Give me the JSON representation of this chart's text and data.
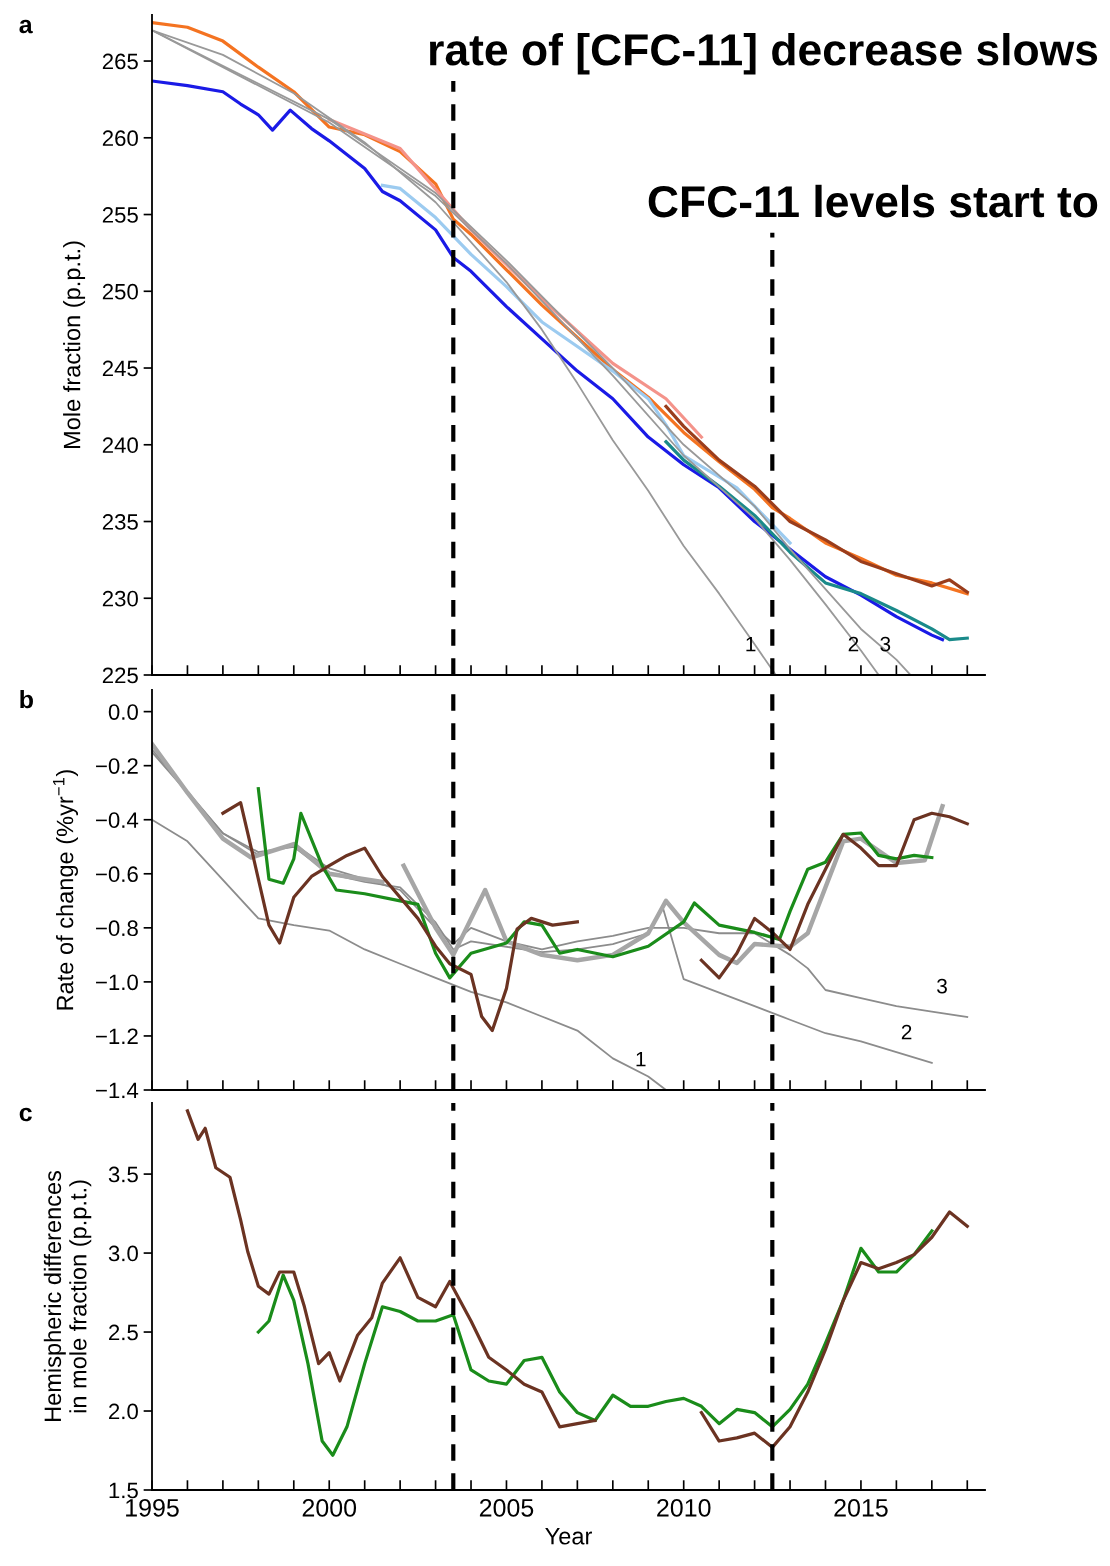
{
  "chart_data": [
    {
      "type": "line",
      "title": "a",
      "ylabel": "Mole fraction (p.p.t.)",
      "xlim": [
        1995,
        2018.5
      ],
      "ylim": [
        225,
        268
      ],
      "yticks": [
        225,
        230,
        235,
        240,
        245,
        250,
        255,
        260,
        265
      ],
      "xticks": [
        1995,
        {
          "value": 1996,
          "label": null
        },
        {
          "value": 1997,
          "label": null
        },
        {
          "value": 1998,
          "label": null
        },
        {
          "value": 1999,
          "label": null
        },
        2000,
        {
          "value": 2001,
          "label": null
        },
        {
          "value": 2002,
          "label": null
        },
        {
          "value": 2003,
          "label": null
        },
        {
          "value": 2004,
          "label": null
        },
        2005,
        {
          "value": 2006,
          "label": null
        },
        {
          "value": 2007,
          "label": null
        },
        {
          "value": 2008,
          "label": null
        },
        {
          "value": 2009,
          "label": null
        },
        2010,
        {
          "value": 2011,
          "label": null
        },
        {
          "value": 2012,
          "label": null
        },
        {
          "value": 2013,
          "label": null
        },
        {
          "value": 2014,
          "label": null
        },
        2015,
        {
          "value": 2016,
          "label": null
        },
        {
          "value": 2017,
          "label": null
        },
        {
          "value": 2018,
          "label": null
        }
      ],
      "tick_labels": "y",
      "series": [
        {
          "color": "#f47321",
          "x": [
            1995,
            1996,
            1997,
            1998,
            1999,
            2000,
            2001,
            2002,
            2003,
            2003.5,
            2004,
            2005,
            2006,
            2007,
            2008,
            2009,
            2010,
            2011,
            2012,
            2012.5,
            2013,
            2014,
            2015,
            2016,
            2017,
            2018
          ],
          "values": [
            267.5,
            267.2,
            266.3,
            264.6,
            263.0,
            260.7,
            260.2,
            259.1,
            257.0,
            254.7,
            253.7,
            251.4,
            249.1,
            247.0,
            244.9,
            243.1,
            240.8,
            238.9,
            237.1,
            235.9,
            235.2,
            233.6,
            232.6,
            231.5,
            231.0,
            230.3
          ]
        },
        {
          "color": "#f4938a",
          "x": [
            2000,
            2002,
            2004,
            2006,
            2008,
            2009.5,
            2010.5
          ],
          "values": [
            261.2,
            259.3,
            254.0,
            249.5,
            245.3,
            243.0,
            240.5
          ]
        },
        {
          "color": "#9a3d1c",
          "x": [
            2009.5,
            2010,
            2011,
            2012,
            2013,
            2014,
            2015,
            2016,
            2017,
            2017.5,
            2018
          ],
          "values": [
            242.5,
            241.2,
            239.0,
            237.3,
            235.0,
            233.8,
            232.4,
            231.6,
            230.8,
            231.2,
            230.4
          ]
        },
        {
          "color": "#9ccbf0",
          "x": [
            2001.5,
            2002,
            2003,
            2004,
            2005,
            2006,
            2007,
            2008,
            2009,
            2009.5,
            2010,
            2011.5,
            2013
          ],
          "values": [
            256.9,
            256.7,
            254.8,
            252.4,
            250.3,
            248.0,
            246.4,
            244.8,
            243.0,
            241.3,
            239.3,
            237.2,
            233.6
          ]
        },
        {
          "color": "#1a1ae6",
          "x": [
            1995,
            1996,
            1997,
            1997.5,
            1998,
            1998.4,
            1998.9,
            1999.5,
            2000,
            2001,
            2001.5,
            2002,
            2003,
            2003.5,
            2004,
            2005,
            2006,
            2007,
            2008,
            2009,
            2010,
            2011,
            2012,
            2013,
            2014,
            2015,
            2016,
            2017,
            2017.3
          ],
          "values": [
            263.7,
            263.4,
            263.0,
            262.2,
            261.5,
            260.5,
            261.8,
            260.6,
            259.8,
            258.0,
            256.5,
            255.9,
            254.0,
            252.2,
            251.3,
            249.0,
            246.9,
            244.8,
            243.0,
            240.5,
            238.7,
            237.2,
            235.0,
            233.2,
            231.4,
            230.2,
            228.8,
            227.6,
            227.3
          ]
        },
        {
          "color": "#1a8a8a",
          "x": [
            2009.5,
            2010,
            2011,
            2012,
            2013,
            2014,
            2015,
            2016,
            2017,
            2017.5,
            2018
          ],
          "values": [
            240.2,
            239.0,
            237.3,
            235.4,
            233.0,
            231.0,
            230.3,
            229.2,
            228.0,
            227.3,
            227.4
          ]
        },
        {
          "name": "1",
          "color": "#999999",
          "x": [
            1995,
            1997,
            1999,
            2001,
            2003,
            2005,
            2006,
            2007,
            2008,
            2009,
            2010,
            2011,
            2012,
            2012.6
          ],
          "values": [
            267.0,
            265.4,
            262.9,
            259.7,
            255.8,
            250.6,
            247.5,
            244.0,
            240.3,
            237.0,
            233.4,
            230.3,
            227.0,
            225.0
          ]
        },
        {
          "name": "2",
          "color": "#999999",
          "x": [
            1995,
            2000,
            2003,
            2005,
            2008,
            2010,
            2012,
            2013,
            2014,
            2015,
            2015.5
          ],
          "values": [
            267.0,
            261.0,
            256.2,
            251.8,
            244.5,
            239.3,
            235.2,
            232.5,
            229.6,
            226.6,
            225.0
          ]
        },
        {
          "name": "3",
          "color": "#999999",
          "x": [
            1995,
            2000,
            2003,
            2005,
            2008,
            2010,
            2012,
            2013,
            2014,
            2015,
            2016,
            2016.4
          ],
          "values": [
            267.0,
            261.2,
            256.4,
            252.0,
            245.0,
            240.0,
            236.0,
            233.2,
            230.6,
            228.0,
            226.0,
            225.0
          ]
        }
      ],
      "ref_lines": [
        {
          "axis": "x",
          "value": 2003.5,
          "label": "rate of [CFC-11] decrease slows",
          "color": "#000000",
          "line_style": "dashed"
        },
        {
          "axis": "x",
          "value": 2012.5,
          "label": "CFC-11 levels start to",
          "color": "#000000",
          "line_style": "dashed"
        }
      ]
    },
    {
      "type": "line",
      "title": "b",
      "ylabel": "Rate of change (%yr$^{−1}$)",
      "xlim": [
        1995,
        2018.5
      ],
      "ylim": [
        -1.4,
        0.08
      ],
      "yticks": [
        {
          "value": -1.4,
          "label": "−1.4"
        },
        {
          "value": -1.2,
          "label": "−1.2"
        },
        {
          "value": -1.0,
          "label": "−1.0"
        },
        {
          "value": -0.8,
          "label": "−0.8"
        },
        {
          "value": -0.6,
          "label": "−0.6"
        },
        {
          "value": -0.4,
          "label": "−0.4"
        },
        {
          "value": -0.2,
          "label": "−0.2"
        },
        {
          "value": 0.0,
          "label": "0.0"
        }
      ],
      "xticks": [
        1995,
        {
          "value": 1996,
          "label": null
        },
        {
          "value": 1997,
          "label": null
        },
        {
          "value": 1998,
          "label": null
        },
        {
          "value": 1999,
          "label": null
        },
        2000,
        {
          "value": 2001,
          "label": null
        },
        {
          "value": 2002,
          "label": null
        },
        {
          "value": 2003,
          "label": null
        },
        {
          "value": 2004,
          "label": null
        },
        2005,
        {
          "value": 2006,
          "label": null
        },
        {
          "value": 2007,
          "label": null
        },
        {
          "value": 2008,
          "label": null
        },
        {
          "value": 2009,
          "label": null
        },
        2010,
        {
          "value": 2011,
          "label": null
        },
        {
          "value": 2012,
          "label": null
        },
        {
          "value": 2013,
          "label": null
        },
        {
          "value": 2014,
          "label": null
        },
        2015,
        {
          "value": 2016,
          "label": null
        },
        {
          "value": 2017,
          "label": null
        },
        {
          "value": 2018,
          "label": null
        }
      ],
      "tick_labels": "y",
      "series": [
        {
          "name": "1",
          "color": "#8c8c8c",
          "x": [
            1995,
            1996,
            1998,
            1999,
            2000,
            2001,
            2002,
            2003,
            2004,
            2005,
            2006,
            2007,
            2008,
            2009,
            2009.5
          ],
          "values": [
            -0.4,
            -0.48,
            -0.765,
            -0.79,
            -0.81,
            -0.88,
            -0.933,
            -0.985,
            -1.037,
            -1.076,
            -1.128,
            -1.18,
            -1.283,
            -1.35,
            -1.4
          ]
        },
        {
          "name": "2",
          "color": "#8c8c8c",
          "x": [
            1995,
            1996,
            1997,
            1998,
            1999,
            2000,
            2001,
            2002,
            2003,
            2003.5,
            2004,
            2005,
            2006,
            2007,
            2008,
            2009,
            2009.4,
            2010,
            2011,
            2012,
            2013,
            2014,
            2015,
            2016,
            2017
          ],
          "values": [
            -0.15,
            -0.3,
            -0.45,
            -0.52,
            -0.5,
            -0.6,
            -0.63,
            -0.65,
            -0.78,
            -0.88,
            -0.85,
            -0.87,
            -0.89,
            -0.88,
            -0.86,
            -0.82,
            -0.72,
            -0.99,
            -1.04,
            -1.09,
            -1.14,
            -1.19,
            -1.22,
            -1.26,
            -1.3
          ]
        },
        {
          "name": "3",
          "color": "#8c8c8c",
          "x": [
            1995,
            1997,
            1998,
            1999,
            2000,
            2001,
            2002,
            2003,
            2003.5,
            2004,
            2005,
            2006,
            2007,
            2008,
            2009,
            2010,
            2011,
            2012,
            2013,
            2013.5,
            2014,
            2015,
            2016,
            2017,
            2018
          ],
          "values": [
            -0.14,
            -0.45,
            -0.53,
            -0.49,
            -0.58,
            -0.62,
            -0.66,
            -0.8,
            -0.86,
            -0.8,
            -0.85,
            -0.88,
            -0.85,
            -0.83,
            -0.8,
            -0.8,
            -0.82,
            -0.82,
            -0.9,
            -0.95,
            -1.03,
            -1.06,
            -1.09,
            -1.11,
            -1.13
          ]
        },
        {
          "color": "#a6a6a6",
          "x": [
            1995,
            1996,
            1997,
            1997.8,
            1999,
            2000,
            2001,
            2001.5,
            2001.8,
            2002.1,
            2003,
            2003.5,
            2004.4,
            2005,
            2006,
            2007,
            2008,
            2009,
            2009.5,
            2010,
            2011,
            2011.5,
            2012,
            2013,
            2013.5,
            2014,
            2014.5,
            2015,
            2016,
            2016.8,
            2017.3
          ],
          "values": [
            -0.12,
            -0.3,
            -0.47,
            -0.54,
            -0.49,
            -0.6,
            -0.62,
            -0.63,
            null,
            -0.57,
            -0.8,
            -0.9,
            -0.66,
            -0.85,
            -0.9,
            -0.92,
            -0.9,
            -0.82,
            -0.7,
            -0.78,
            -0.9,
            -0.93,
            -0.86,
            -0.87,
            -0.82,
            -0.65,
            -0.48,
            -0.47,
            -0.56,
            -0.55,
            -0.35
          ]
        },
        {
          "color": "#1a8c1a",
          "x": [
            1998,
            1998.3,
            1998.7,
            1999,
            1999.2,
            1999.8,
            2000.2,
            2001,
            2002,
            2002.5,
            2003,
            2003.4,
            2004,
            2005,
            2005.5,
            2006,
            2006.5,
            2007,
            2008,
            2009,
            2010,
            2010.3,
            2011,
            2012,
            2012.7,
            2013,
            2013.5,
            2014,
            2014.5,
            2015,
            2015.5,
            2016,
            2016.5,
            2017
          ],
          "values": [
            -0.285,
            -0.62,
            -0.635,
            -0.545,
            -0.376,
            -0.57,
            -0.66,
            -0.674,
            -0.7,
            -0.713,
            -0.894,
            -0.985,
            -0.894,
            -0.856,
            -0.778,
            -0.79,
            -0.894,
            -0.88,
            -0.907,
            -0.868,
            -0.778,
            -0.708,
            -0.79,
            -0.817,
            -0.843,
            -0.739,
            -0.583,
            -0.557,
            -0.454,
            -0.449,
            -0.532,
            -0.545,
            -0.532,
            -0.54
          ]
        },
        {
          "color": "#6b3322",
          "x": [
            1997,
            1997.5,
            1997.8,
            1998.3,
            1998.6,
            1999,
            1999.5,
            2000,
            2000.5,
            2001,
            2001.5,
            2002.5,
            2003,
            2003.4,
            2004,
            2004.3,
            2004.6,
            2005,
            2005.3,
            2005.7,
            2006.3,
            2007,
            2008.5,
            2010.5,
            2011,
            2011.5,
            2012,
            2012.5,
            2013,
            2013.5,
            2014,
            2014.5,
            2015,
            2015.5,
            2016,
            2016.5,
            2017,
            2017.5,
            2018
          ],
          "values": [
            -0.376,
            -0.337,
            -0.505,
            -0.79,
            -0.856,
            -0.687,
            -0.61,
            -0.57,
            -0.532,
            -0.505,
            -0.61,
            -0.765,
            -0.868,
            -0.933,
            -0.972,
            -1.128,
            -1.18,
            -1.024,
            -0.804,
            -0.765,
            -0.79,
            -0.778,
            null,
            -0.92,
            -0.985,
            -0.894,
            -0.765,
            -0.817,
            -0.88,
            -0.713,
            -0.583,
            -0.454,
            -0.505,
            -0.57,
            -0.57,
            -0.4,
            -0.376,
            -0.389,
            -0.415
          ]
        }
      ],
      "ref_lines": [
        {
          "axis": "x",
          "value": 2003.5,
          "color": "#000000",
          "line_style": "dashed"
        },
        {
          "axis": "x",
          "value": 2012.5,
          "color": "#000000",
          "line_style": "dashed"
        }
      ]
    },
    {
      "type": "line",
      "title": "c",
      "xlabel": "Year",
      "ylabel": "Hemispheric differences\nin mole fraction (p.p.t.)",
      "xlim": [
        1995,
        2018.5
      ],
      "ylim": [
        1.5,
        3.95
      ],
      "yticks": [
        1.5,
        {
          "value": 2,
          "label": "2.0"
        },
        2.5,
        {
          "value": 3,
          "label": "3.0"
        },
        3.5
      ],
      "xticks": [
        1995,
        {
          "value": 1996,
          "label": null
        },
        {
          "value": 1997,
          "label": null
        },
        {
          "value": 1998,
          "label": null
        },
        {
          "value": 1999,
          "label": null
        },
        2000,
        {
          "value": 2001,
          "label": null
        },
        {
          "value": 2002,
          "label": null
        },
        {
          "value": 2003,
          "label": null
        },
        {
          "value": 2004,
          "label": null
        },
        2005,
        {
          "value": 2006,
          "label": null
        },
        {
          "value": 2007,
          "label": null
        },
        {
          "value": 2008,
          "label": null
        },
        {
          "value": 2009,
          "label": null
        },
        2010,
        {
          "value": 2011,
          "label": null
        },
        {
          "value": 2012,
          "label": null
        },
        {
          "value": 2013,
          "label": null
        },
        {
          "value": 2014,
          "label": null
        },
        2015,
        {
          "value": 2016,
          "label": null
        },
        {
          "value": 2017,
          "label": null
        },
        {
          "value": 2018,
          "label": null
        }
      ],
      "series": [
        {
          "color": "#1a8c1a",
          "x": [
            1998,
            1998.3,
            1998.7,
            1999,
            1999.4,
            1999.8,
            2000.1,
            2000.5,
            2001,
            2001.5,
            2002,
            2002.5,
            2003,
            2003.5,
            2004,
            2004.5,
            2005,
            2005.5,
            2006,
            2006.5,
            2007,
            2007.5,
            2008,
            2008.5,
            2009,
            2009.5,
            2010,
            2010.5,
            2011,
            2011.5,
            2012,
            2012.5,
            2013,
            2013.5,
            2014,
            2014.5,
            2015,
            2015.5,
            2016,
            2016.5,
            2017
          ],
          "values": [
            2.5,
            2.57,
            2.86,
            2.7,
            2.3,
            1.81,
            1.72,
            1.9,
            2.3,
            2.66,
            2.63,
            2.57,
            2.57,
            2.61,
            2.26,
            2.19,
            2.17,
            2.32,
            2.34,
            2.12,
            1.99,
            1.94,
            2.1,
            2.03,
            2.03,
            2.06,
            2.08,
            2.03,
            1.92,
            2.01,
            1.99,
            1.9,
            2.01,
            2.17,
            2.43,
            2.7,
            3.03,
            2.88,
            2.88,
            2.99,
            3.14
          ]
        },
        {
          "color": "#6b3322",
          "x": [
            1996,
            1996.3,
            1996.5,
            1996.8,
            1997.2,
            1997.5,
            1997.7,
            1998,
            1998.3,
            1998.6,
            1999,
            1999.3,
            1999.7,
            2000,
            2000.3,
            2000.8,
            2001.2,
            2001.5,
            2002,
            2002.5,
            2003,
            2003.4,
            2004,
            2004.5,
            2005,
            2005.5,
            2006,
            2006.5,
            2007,
            2007.5,
            2009,
            2010.5,
            2011,
            2011.5,
            2012,
            2012.5,
            2013,
            2013.5,
            2014,
            2014.5,
            2015,
            2015.5,
            2016,
            2016.5,
            2017,
            2017.5,
            2018
          ],
          "values": [
            3.9,
            3.72,
            3.79,
            3.54,
            3.48,
            3.21,
            3.01,
            2.79,
            2.74,
            2.88,
            2.88,
            2.66,
            2.3,
            2.37,
            2.19,
            2.48,
            2.59,
            2.81,
            2.97,
            2.72,
            2.66,
            2.82,
            2.57,
            2.34,
            2.26,
            2.17,
            2.12,
            1.9,
            1.92,
            1.94,
            null,
            1.99,
            1.81,
            1.83,
            1.86,
            1.77,
            1.9,
            2.12,
            2.39,
            2.7,
            2.94,
            2.9,
            2.94,
            2.99,
            3.1,
            3.26,
            3.17
          ]
        }
      ],
      "ref_lines": [
        {
          "axis": "x",
          "value": 2003.5,
          "color": "#000000",
          "line_style": "dashed"
        },
        {
          "axis": "x",
          "value": 2012.5,
          "color": "#000000",
          "line_style": "dashed"
        }
      ]
    }
  ]
}
